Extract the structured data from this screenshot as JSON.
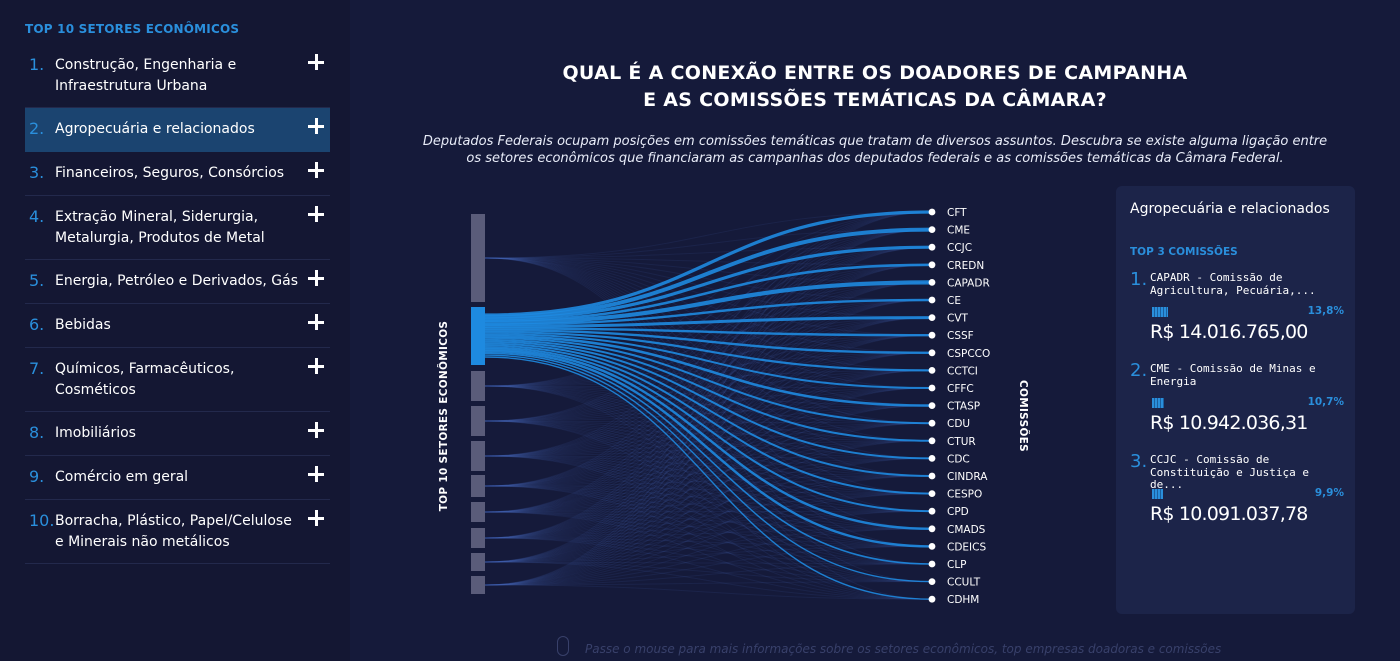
{
  "sidebar": {
    "title": "TOP 10 SETORES ECONÔMICOS",
    "items": [
      {
        "num": "1.",
        "label": "Construção, Engenharia e Infraestrutura Urbana"
      },
      {
        "num": "2.",
        "label": "Agropecuária e relacionados"
      },
      {
        "num": "3.",
        "label": "Financeiros, Seguros, Consórcios"
      },
      {
        "num": "4.",
        "label": "Extração Mineral, Siderurgia, Metalurgia, Produtos de Metal"
      },
      {
        "num": "5.",
        "label": "Energia, Petróleo e Derivados, Gás"
      },
      {
        "num": "6.",
        "label": "Bebidas"
      },
      {
        "num": "7.",
        "label": "Químicos, Farmacêuticos, Cosméticos"
      },
      {
        "num": "8.",
        "label": "Imobiliários"
      },
      {
        "num": "9.",
        "label": "Comércio em geral"
      },
      {
        "num": "10.",
        "label": "Borracha, Plástico, Papel/Celulose e Minerais não metálicos"
      }
    ],
    "selected_index": 1
  },
  "header": {
    "title_line1": "QUAL É A CONEXÃO ENTRE OS DOADORES DE CAMPANHA",
    "title_line2": "E AS COMISSÕES TEMÁTICAS DA CÂMARA?",
    "subtitle_line1": "Deputados Federais ocupam posições em comissões temáticas que tratam de diversos assuntos. Descubra se existe alguma ligação entre",
    "subtitle_line2": "os setores econômicos que financiaram as campanhas dos deputados federais e as comissões temáticas da Câmara Federal."
  },
  "diagram": {
    "left_axis_label": "TOP 10 SETORES ECONÔMICOS",
    "right_axis_label": "COMISSÕES",
    "commissions": [
      "CFT",
      "CME",
      "CCJC",
      "CREDN",
      "CAPADR",
      "CE",
      "CVT",
      "CSSF",
      "CSPCCO",
      "CCTCI",
      "CFFC",
      "CTASP",
      "CDU",
      "CTUR",
      "CDC",
      "CINDRA",
      "CESPO",
      "CPD",
      "CMADS",
      "CDEICS",
      "CLP",
      "CCULT",
      "CDHM"
    ],
    "colors": {
      "highlight": "#1e8ae0",
      "sector_block": "#5a5c7a",
      "background": "#151a3a"
    }
  },
  "panel": {
    "title": "Agropecuária e relacionados",
    "subtitle": "TOP 3 COMISSÕES",
    "items": [
      {
        "num": "1.",
        "name": "CAPADR - Comissão de Agricultura, Pecuária,...",
        "pct": "13,8%",
        "share": 0.138,
        "value": "R$ 14.016.765,00"
      },
      {
        "num": "2.",
        "name": "CME - Comissão de Minas e Energia",
        "pct": "10,7%",
        "share": 0.107,
        "value": "R$ 10.942.036,31"
      },
      {
        "num": "3.",
        "name": "CCJC - Comissão de Constituição e Justiça e de...",
        "pct": "9,9%",
        "share": 0.099,
        "value": "R$ 10.091.037,78"
      }
    ]
  },
  "footer": {
    "hint": "Passe o mouse para mais informações sobre os setores econômicos, top empresas doadoras e comissões"
  }
}
